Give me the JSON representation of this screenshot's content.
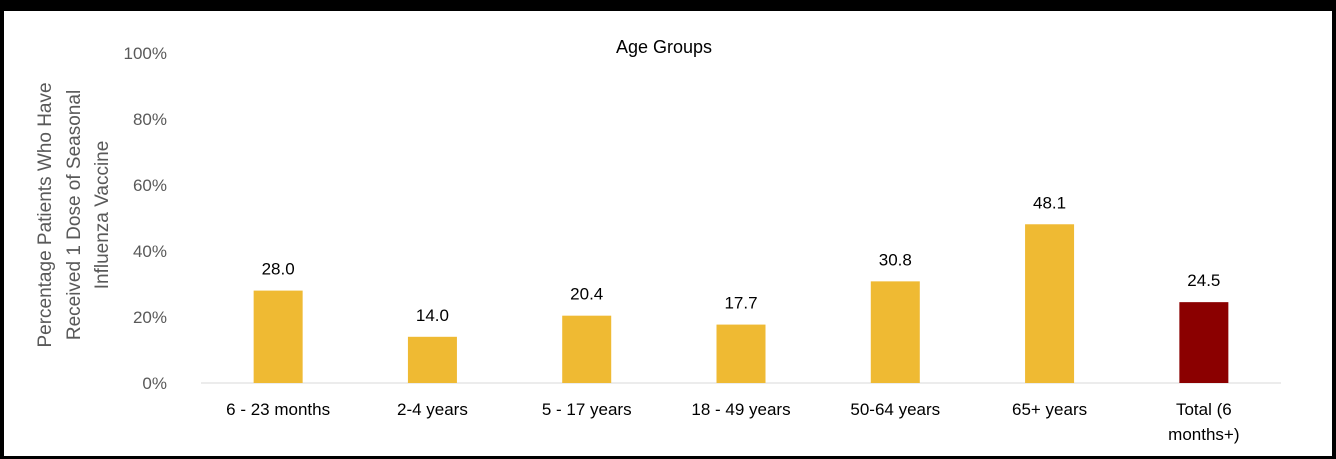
{
  "chart_data": {
    "type": "bar",
    "title": "Age Groups",
    "ylabel_lines": [
      "Percentage Patients Who Have",
      "Received 1 Dose of Seasonal",
      "Influenza Vaccine"
    ],
    "xlabel": "",
    "categories": [
      [
        "6 - 23 months"
      ],
      [
        "2-4 years"
      ],
      [
        "5 - 17 years"
      ],
      [
        "18 - 49 years"
      ],
      [
        "50-64 years"
      ],
      [
        "65+ years"
      ],
      [
        "Total (6",
        "months+)"
      ]
    ],
    "values": [
      28.0,
      14.0,
      20.4,
      17.7,
      30.8,
      48.1,
      24.5
    ],
    "value_labels": [
      "28.0",
      "14.0",
      "20.4",
      "17.7",
      "30.8",
      "48.1",
      "24.5"
    ],
    "bar_colors": [
      "#EFBA33",
      "#EFBA33",
      "#EFBA33",
      "#EFBA33",
      "#EFBA33",
      "#EFBA33",
      "#8B0000"
    ],
    "ylim": [
      0,
      100
    ],
    "yticks": [
      "0%",
      "20%",
      "40%",
      "60%",
      "80%",
      "100%"
    ],
    "grid": false
  }
}
